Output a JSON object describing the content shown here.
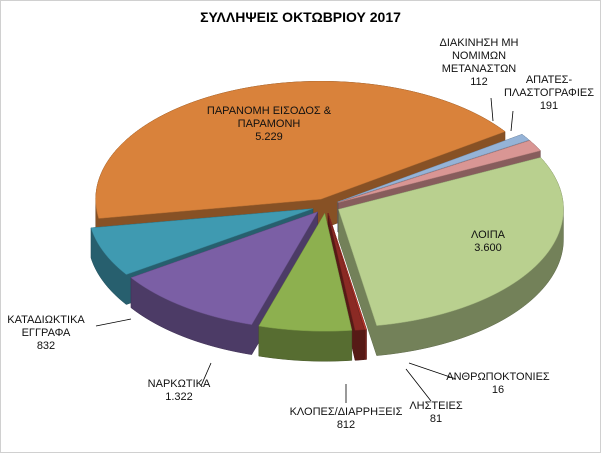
{
  "chart_data": {
    "type": "pie3d",
    "title": "ΣΥΛΛΗΨΕΙΣ ΟΚΤΩΒΡΙΟΥ 2017",
    "categories": [
      "ΔΙΑΚΙΝΗΣΗ ΜΗ ΝΟΜΙΜΩΝ ΜΕΤΑΝΑΣΤΩΝ",
      "ΑΠΑΤΕΣ-ΠΛΑΣΤΟΓΡΑΦΙΕΣ",
      "ΛΟΙΠΑ",
      "ΑΝΘΡΩΠΟΚΤΟΝΙΕΣ",
      "ΛΗΣΤΕΙΕΣ",
      "ΚΛΟΠΕΣ/ΔΙΑΡΡΗΞΕΙΣ",
      "ΝΑΡΚΩΤΙΚΑ",
      "ΚΑΤΑΔΙΩΚΤΙΚΑ ΕΓΓΡΑΦΑ",
      "ΠΑΡΑΝΟΜΗ ΕΙΣΟΔΟΣ & ΠΑΡΑΜΟΝΗ"
    ],
    "values": [
      112,
      191,
      3600,
      16,
      81,
      812,
      1322,
      832,
      5229
    ],
    "value_labels": [
      "112",
      "191",
      "3.600",
      "16",
      "81",
      "812",
      "1.322",
      "832",
      "5.229"
    ],
    "colors": [
      "#95b3d7",
      "#d99694",
      "#b9d08f",
      "#b2362c",
      "#8b2a24",
      "#8db04f",
      "#7b5fa5",
      "#3f9ab1",
      "#d9823b"
    ]
  }
}
